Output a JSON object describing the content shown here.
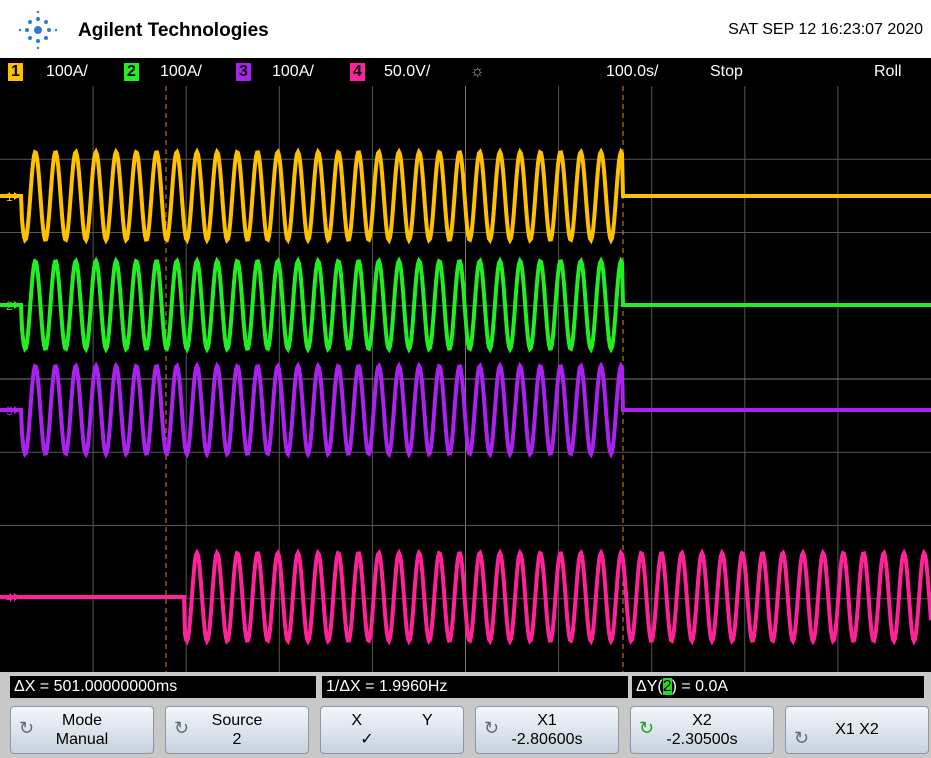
{
  "header": {
    "brand": "Agilent Technologies",
    "datetime": "SAT SEP 12 16:23:07 2020"
  },
  "status_bar": {
    "channels": [
      {
        "number": "1",
        "scale": "100A/"
      },
      {
        "number": "2",
        "scale": "100A/"
      },
      {
        "number": "3",
        "scale": "100A/"
      },
      {
        "number": "4",
        "scale": "50.0V/"
      }
    ],
    "timebase": "100.0s/",
    "run_state": "Stop",
    "mode": "Roll"
  },
  "markers": [
    "1",
    "2",
    "3",
    "4"
  ],
  "measurements": {
    "delta_x": "ΔX = 501.00000000ms",
    "inverse_delta_x": "1/ΔX = 1.9960Hz",
    "delta_y_prefix": "ΔY(",
    "delta_y_channel": "2",
    "delta_y_suffix": ") = 0.0A"
  },
  "softkeys": [
    {
      "label": "Mode",
      "value": "Manual"
    },
    {
      "label": "Source",
      "value": "2"
    },
    {
      "label": "X",
      "label2": "Y",
      "value": "✓"
    },
    {
      "label": "X1",
      "value": "-2.80600s"
    },
    {
      "label": "X2",
      "value": "-2.30500s"
    },
    {
      "label": "X1 X2"
    }
  ]
}
